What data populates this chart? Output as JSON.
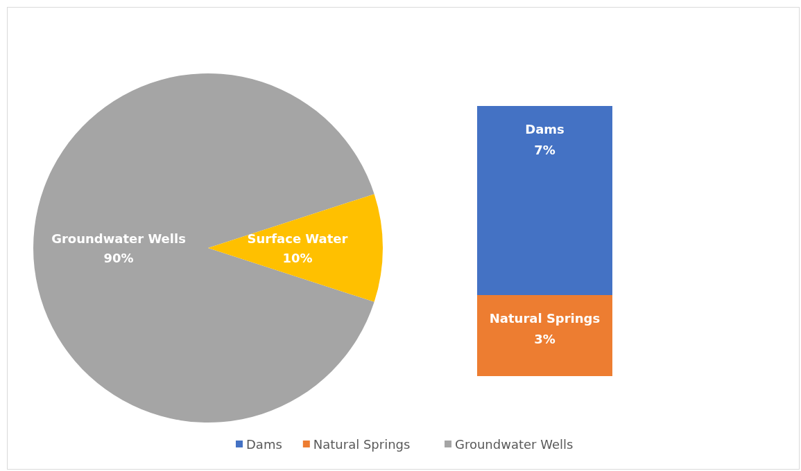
{
  "chart_data": [
    {
      "type": "pie",
      "categories": [
        "Groundwater Wells",
        "Surface Water"
      ],
      "values": [
        90,
        10
      ],
      "colors": [
        "#a5a5a5",
        "#ffc000"
      ],
      "value_labels": [
        "90%",
        "10%"
      ],
      "legend": "bottom"
    },
    {
      "type": "bar",
      "stacked": true,
      "categories": [
        null
      ],
      "legend": "bottom",
      "series": [
        {
          "name": "Natural Springs",
          "color": "#ed7d31",
          "values": [
            3
          ],
          "value_labels": [
            "3%"
          ]
        },
        {
          "name": "Dams",
          "color": "#4472c4",
          "values": [
            7
          ],
          "value_labels": [
            "7%"
          ]
        }
      ]
    }
  ]
}
